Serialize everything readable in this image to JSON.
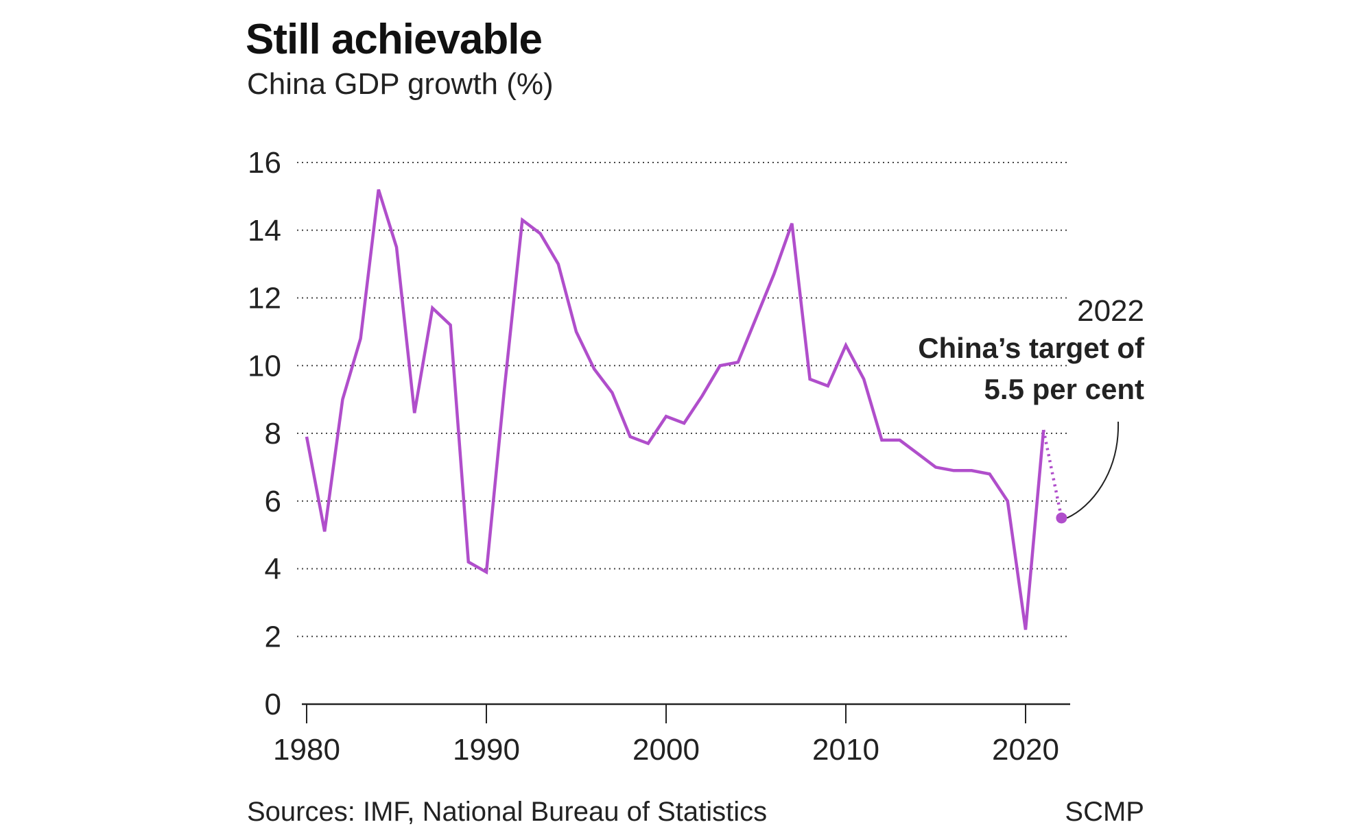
{
  "chart_data": {
    "type": "line",
    "title": "Still achievable",
    "subtitle": "China GDP growth (%)",
    "xlabel": "",
    "ylabel": "",
    "xlim": [
      1980,
      2022
    ],
    "ylim": [
      0,
      16
    ],
    "yticks": [
      0,
      2,
      4,
      6,
      8,
      10,
      12,
      14,
      16
    ],
    "xticks": [
      1980,
      1990,
      2000,
      2010,
      2020
    ],
    "grid": "horizontal dotted",
    "line_color": "#b04ecb",
    "series": [
      {
        "x": [
          1980,
          1981,
          1982,
          1983,
          1984,
          1985,
          1986,
          1987,
          1988,
          1989,
          1990,
          1991,
          1992,
          1993,
          1994,
          1995,
          1996,
          1997,
          1998,
          1999,
          2000,
          2001,
          2002,
          2003,
          2004,
          2005,
          2006,
          2007,
          2008,
          2009,
          2010,
          2011,
          2012,
          2013,
          2014,
          2015,
          2016,
          2017,
          2018,
          2019,
          2020,
          2021
        ],
        "values": [
          7.9,
          5.1,
          9.0,
          10.8,
          15.2,
          13.5,
          8.6,
          11.7,
          11.2,
          4.2,
          3.9,
          9.3,
          14.3,
          13.9,
          13.0,
          11.0,
          9.9,
          9.2,
          7.9,
          7.7,
          8.5,
          8.3,
          9.1,
          10.0,
          10.1,
          11.4,
          12.7,
          14.2,
          9.6,
          9.4,
          10.6,
          9.6,
          7.8,
          7.8,
          7.4,
          7.0,
          6.9,
          6.9,
          6.8,
          6.0,
          2.2,
          8.1
        ]
      }
    ],
    "target": {
      "x": 2022,
      "value": 5.5,
      "style": "dotted"
    },
    "annotation": {
      "year": "2022",
      "line1": "China’s target of",
      "line2": "5.5 per cent"
    }
  },
  "footer": {
    "source": "Sources: IMF, National Bureau of Statistics",
    "credit": "SCMP"
  }
}
